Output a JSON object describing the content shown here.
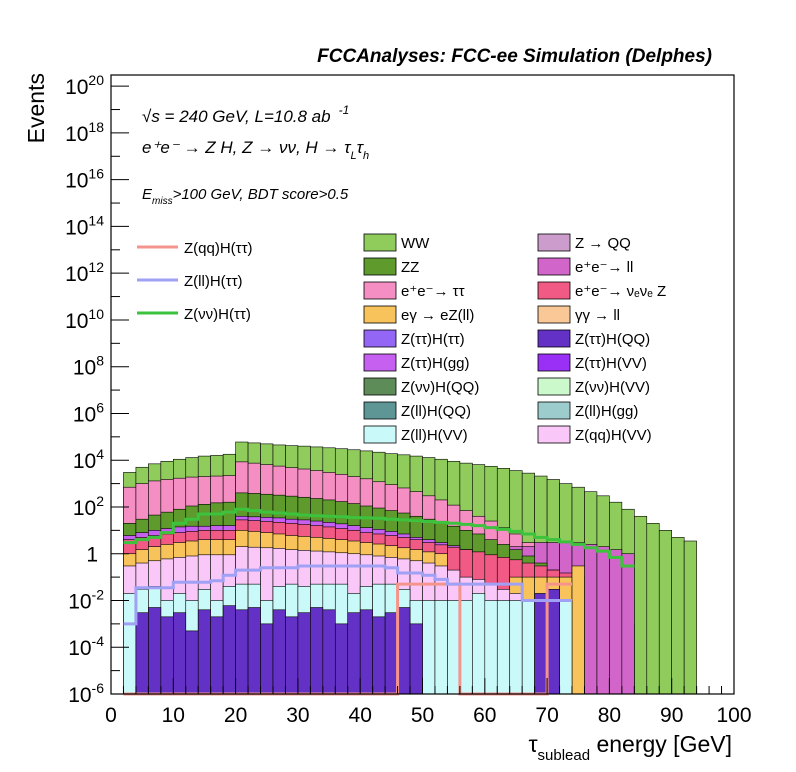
{
  "header": "FCCAnalyses: FCC-ee Simulation (Delphes)",
  "annotations": {
    "sqrt_s": "√s = 240 GeV, L=10.8 ab",
    "lumi_exp": "-1",
    "process": "e⁺e⁻ → Z H, Z → νν, H → τ",
    "process_sub1": "L",
    "process_tau2": "τ",
    "process_sub2": "h",
    "cuts_e": "E",
    "cuts_sub": "miss",
    "cuts_rest": ">100 GeV, BDT score>0.5"
  },
  "chart_data": {
    "type": "bar",
    "xlabel": "τ",
    "xlabel_sub": "sublead",
    "xlabel_rest": " energy [GeV]",
    "ylabel": "Events",
    "xlim": [
      0,
      100
    ],
    "ylim": [
      1e-06,
      3e+20
    ],
    "log_y": true,
    "x_ticks": [
      "0",
      "10",
      "20",
      "30",
      "40",
      "50",
      "60",
      "70",
      "80",
      "90",
      "100"
    ],
    "y_ticks": [
      {
        "base": "10",
        "exp": "20",
        "value": 1e+20
      },
      {
        "base": "10",
        "exp": "18",
        "value": 1e+18
      },
      {
        "base": "10",
        "exp": "16",
        "value": 1e+16
      },
      {
        "base": "10",
        "exp": "14",
        "value": 100000000000000.0
      },
      {
        "base": "10",
        "exp": "12",
        "value": 1000000000000.0
      },
      {
        "base": "10",
        "exp": "10",
        "value": 10000000000.0
      },
      {
        "base": "10",
        "exp": "8",
        "value": 100000000.0
      },
      {
        "base": "10",
        "exp": "6",
        "value": 1000000.0
      },
      {
        "base": "10",
        "exp": "4",
        "value": 10000.0
      },
      {
        "base": "10",
        "exp": "2",
        "value": 100.0
      },
      {
        "base": "1",
        "exp": "",
        "value": 1
      },
      {
        "base": "10",
        "exp": "-2",
        "value": 0.01
      },
      {
        "base": "10",
        "exp": "-4",
        "value": 0.0001
      },
      {
        "base": "10",
        "exp": "-6",
        "value": 1e-06
      }
    ],
    "bin_edges": [
      2,
      4,
      6,
      8,
      10,
      12,
      14,
      16,
      18,
      20,
      22,
      24,
      26,
      28,
      30,
      32,
      34,
      36,
      38,
      40,
      42,
      44,
      46,
      48,
      50,
      52,
      54,
      56,
      58,
      60,
      62,
      64,
      66,
      68,
      70,
      72,
      74,
      76,
      78,
      80,
      82,
      84,
      86,
      88,
      90,
      92,
      94
    ],
    "stack_envelopes": [
      {
        "name": "WW",
        "color": "#8fcc5c",
        "values": [
          3000,
          5000,
          7000,
          9000,
          11000,
          13000,
          15000,
          16000,
          18000,
          60000,
          55000,
          50000,
          45000,
          42000,
          40000,
          37000,
          34000,
          31000,
          28000,
          25000,
          22000,
          19000,
          17000,
          15000,
          13000,
          11000,
          9000,
          7500,
          6500,
          5500,
          4500,
          3600,
          2800,
          2100,
          1500,
          1000,
          700,
          450,
          300,
          160,
          80,
          40,
          20,
          10,
          5,
          3.5
        ]
      },
      {
        "name": "e⁺e⁻→ ττ",
        "color": "#f58ec2",
        "values": [
          700,
          1000,
          1300,
          1500,
          1700,
          1900,
          2000,
          2100,
          2200,
          8500,
          7500,
          6500,
          5600,
          4800,
          4200,
          3600,
          3000,
          2500,
          2000,
          1600,
          1200,
          900,
          650,
          450,
          300,
          200,
          120,
          70,
          40,
          25,
          13,
          7,
          3,
          1.2,
          0.5,
          0.15,
          0.04,
          0.01,
          0.003,
          0.002,
          0.001,
          0,
          0,
          0,
          0,
          0
        ]
      },
      {
        "name": "e⁺e⁻→ ll",
        "color": "#d165c9",
        "values": [
          0,
          0,
          0,
          0,
          0,
          0,
          0,
          0,
          0,
          0,
          0,
          0,
          0,
          0,
          0,
          0,
          0,
          0,
          0,
          0,
          0,
          0,
          0,
          0,
          0,
          0,
          0,
          0,
          0,
          0,
          0,
          2,
          2,
          3,
          3,
          3,
          3,
          2.5,
          2,
          1.5,
          1,
          0,
          0,
          0,
          0,
          0
        ]
      },
      {
        "name": "ZZ",
        "color": "#5e9a2c",
        "values": [
          20,
          30,
          45,
          60,
          80,
          110,
          130,
          150,
          160,
          400,
          380,
          350,
          320,
          290,
          260,
          230,
          200,
          170,
          140,
          110,
          90,
          70,
          55,
          40,
          30,
          22,
          15,
          10,
          7,
          4,
          2.5,
          1.5,
          0.8,
          0.4,
          0.2,
          0.1,
          0,
          0,
          0,
          0,
          0,
          0,
          0,
          0,
          0,
          0
        ]
      },
      {
        "name": "Z(ττ)H(gg)",
        "color": "#c660f0",
        "values": [
          6,
          8,
          10,
          12,
          14,
          15,
          15,
          16,
          16,
          40,
          38,
          36,
          34,
          30,
          28,
          25,
          22,
          19,
          16,
          13,
          11,
          9,
          7,
          5,
          4,
          3,
          2.2,
          1.5,
          1,
          0.7,
          0.4,
          0.25,
          0.15,
          0.06,
          0.03,
          0.01,
          0,
          0,
          0,
          0,
          0,
          0,
          0,
          0,
          0,
          0
        ]
      },
      {
        "name": "e⁺e⁻→ νₑνₑ Z",
        "color": "#f05a84",
        "values": [
          4,
          5,
          6,
          7,
          8,
          9,
          10,
          10,
          10,
          28,
          26,
          24,
          22,
          20,
          18,
          16,
          14,
          12,
          10,
          8,
          7,
          6,
          5,
          4,
          3,
          2.4,
          1.9,
          1.5,
          1.2,
          0.9,
          0.7,
          0.55,
          0.4,
          0.3,
          0.2,
          0.15,
          0.1,
          0,
          0,
          0,
          0,
          0,
          0,
          0,
          0,
          0
        ]
      },
      {
        "name": "eγ → eZ(ll)",
        "color": "#f8c35a",
        "values": [
          1,
          1.5,
          2,
          2.5,
          3,
          3.5,
          4,
          4,
          4,
          10,
          9,
          8,
          7,
          6,
          5.5,
          5,
          4.5,
          4,
          3.5,
          3,
          2.6,
          2.2,
          1.8,
          1.5,
          1.2,
          1,
          0.02,
          0.02,
          0.02,
          0.02,
          0.02,
          0.1,
          0.1,
          0.1,
          0.1,
          0.1,
          0.3,
          0,
          0,
          0,
          0,
          0,
          0,
          0,
          0,
          0
        ]
      },
      {
        "name": "Z(qq)H(VV)",
        "color": "#f9c8f8",
        "values": [
          0.3,
          0.4,
          0.5,
          0.6,
          0.7,
          0.8,
          0.9,
          0.9,
          0.9,
          2,
          1.9,
          1.8,
          1.7,
          1.5,
          1.4,
          1.3,
          1.2,
          1.1,
          1,
          0.9,
          0.8,
          0.7,
          0.6,
          0.5,
          0.4,
          0.3,
          0.2,
          0.1,
          0.08,
          0.05,
          0.03,
          0.02,
          0.01,
          0.01,
          0,
          0,
          0,
          0,
          0,
          0,
          0,
          0,
          0,
          0,
          0,
          0
        ]
      },
      {
        "name": "Z(ll)H(VV)",
        "color": "#caf9fa",
        "values": [
          0.02,
          0.03,
          0.04,
          0.01,
          0.02,
          0.01,
          0.03,
          0.01,
          0.04,
          0.05,
          0.05,
          0.01,
          0.04,
          0.05,
          0.04,
          0.05,
          0.05,
          0.05,
          0.02,
          0.04,
          0.05,
          0.05,
          0.03,
          0.01,
          0.01,
          0.01,
          0.01,
          0.01,
          0.02,
          0.01,
          0.01,
          0.01,
          0.01,
          0.01,
          0.01,
          0.01,
          0,
          0,
          0,
          0,
          0,
          0,
          0,
          0,
          0,
          0
        ]
      },
      {
        "name": "Z(ττ)H(QQ)",
        "color": "#6431c6",
        "values": [
          0,
          0.003,
          0.005,
          0.002,
          0.003,
          0.0005,
          0.004,
          0.002,
          0.006,
          0.004,
          0.005,
          0.001,
          0.004,
          0.002,
          0.003,
          0.005,
          0.004,
          0.001,
          0.003,
          0.004,
          0.002,
          0.003,
          0.005,
          0.001,
          0,
          0,
          0,
          0,
          0,
          0,
          0,
          0,
          0,
          0.02,
          0.03,
          0,
          0,
          0,
          0,
          0,
          0,
          0,
          0,
          0,
          0,
          0
        ]
      }
    ],
    "series": [
      {
        "name": "WW",
        "color": "#8fcc5c"
      },
      {
        "name": "ZZ",
        "color": "#5e9a2c"
      },
      {
        "name": "e⁺e⁻→ ττ",
        "color": "#f58ec2"
      },
      {
        "name": "eγ → eZ(ll)",
        "color": "#f8c35a"
      },
      {
        "name": "Z(ττ)H(ττ)",
        "color": "#9466f5"
      },
      {
        "name": "Z(ττ)H(gg)",
        "color": "#c660f0"
      },
      {
        "name": "Z(νν)H(QQ)",
        "color": "#5e8c58"
      },
      {
        "name": "Z(ll)H(QQ)",
        "color": "#5e9696"
      },
      {
        "name": "Z(ll)H(VV)",
        "color": "#caf9fa"
      },
      {
        "name": "Z → QQ",
        "color": "#cc9ccc"
      },
      {
        "name": "e⁺e⁻→ ll",
        "color": "#d165c9"
      },
      {
        "name": "e⁺e⁻→ νₑνₑ Z",
        "color": "#f05a84"
      },
      {
        "name": "γγ → ll",
        "color": "#f9c896"
      },
      {
        "name": "Z(ττ)H(QQ)",
        "color": "#6431c6"
      },
      {
        "name": "Z(ττ)H(VV)",
        "color": "#9a2ff5"
      },
      {
        "name": "Z(νν)H(VV)",
        "color": "#ccf9cc"
      },
      {
        "name": "Z(ll)H(gg)",
        "color": "#9ccccc"
      },
      {
        "name": "Z(qq)H(VV)",
        "color": "#f9c8f8"
      }
    ],
    "signals": [
      {
        "name": "Z(qq)H(ττ)",
        "color": "#f5948c",
        "edges": [
          2,
          4,
          6,
          8,
          10,
          12,
          14,
          16,
          18,
          20,
          22,
          24,
          26,
          28,
          30,
          32,
          34,
          36,
          38,
          40,
          42,
          44,
          46,
          48,
          50,
          52,
          54,
          56,
          58,
          60,
          62,
          64,
          66,
          68,
          70,
          72,
          74
        ],
        "values": [
          0,
          0,
          0,
          0,
          0,
          0,
          0,
          0,
          0,
          0,
          0,
          0,
          0,
          0,
          0,
          0,
          0,
          0,
          0,
          0,
          0,
          0,
          0.05,
          0.05,
          0.05,
          0.05,
          0.05,
          0,
          0,
          0,
          0,
          0,
          0,
          0,
          0.05,
          0.05
        ]
      },
      {
        "name": "Z(ll)H(ττ)",
        "color": "#a0a0f5",
        "edges": [
          2,
          4,
          6,
          8,
          10,
          12,
          14,
          16,
          18,
          20,
          22,
          24,
          26,
          28,
          30,
          32,
          34,
          36,
          38,
          40,
          42,
          44,
          46,
          48,
          50,
          52,
          54,
          56,
          58,
          60,
          62,
          64,
          66,
          68,
          70,
          72,
          74
        ],
        "values": [
          0.001,
          0.035,
          0.035,
          0.035,
          0.06,
          0.06,
          0.06,
          0.07,
          0.12,
          0.2,
          0.2,
          0.25,
          0.25,
          0.25,
          0.3,
          0.3,
          0.3,
          0.3,
          0.3,
          0.3,
          0.3,
          0.25,
          0.15,
          0.15,
          0.12,
          0.08,
          0.05,
          0.05,
          0.05,
          0.05,
          0.05,
          0.05,
          0.01,
          0.01,
          0.01,
          0.01
        ]
      },
      {
        "name": "Z(νν)H(ττ)",
        "color": "#3cc23c",
        "edges": [
          2,
          4,
          6,
          8,
          10,
          12,
          14,
          16,
          18,
          20,
          22,
          24,
          26,
          28,
          30,
          32,
          34,
          36,
          38,
          40,
          42,
          44,
          46,
          48,
          50,
          52,
          54,
          56,
          58,
          60,
          62,
          64,
          66,
          68,
          70,
          72,
          74,
          76,
          78,
          80,
          82,
          84
        ],
        "values": [
          3,
          4,
          5,
          8,
          20,
          30,
          50,
          50,
          60,
          80,
          70,
          60,
          55,
          50,
          45,
          42,
          40,
          38,
          35,
          34,
          33,
          30,
          28,
          26,
          24,
          22,
          20,
          18,
          16,
          13,
          11,
          9,
          7,
          5,
          4,
          3.2,
          2.5,
          1.8,
          1.3,
          0.7,
          0.3
        ]
      }
    ]
  }
}
